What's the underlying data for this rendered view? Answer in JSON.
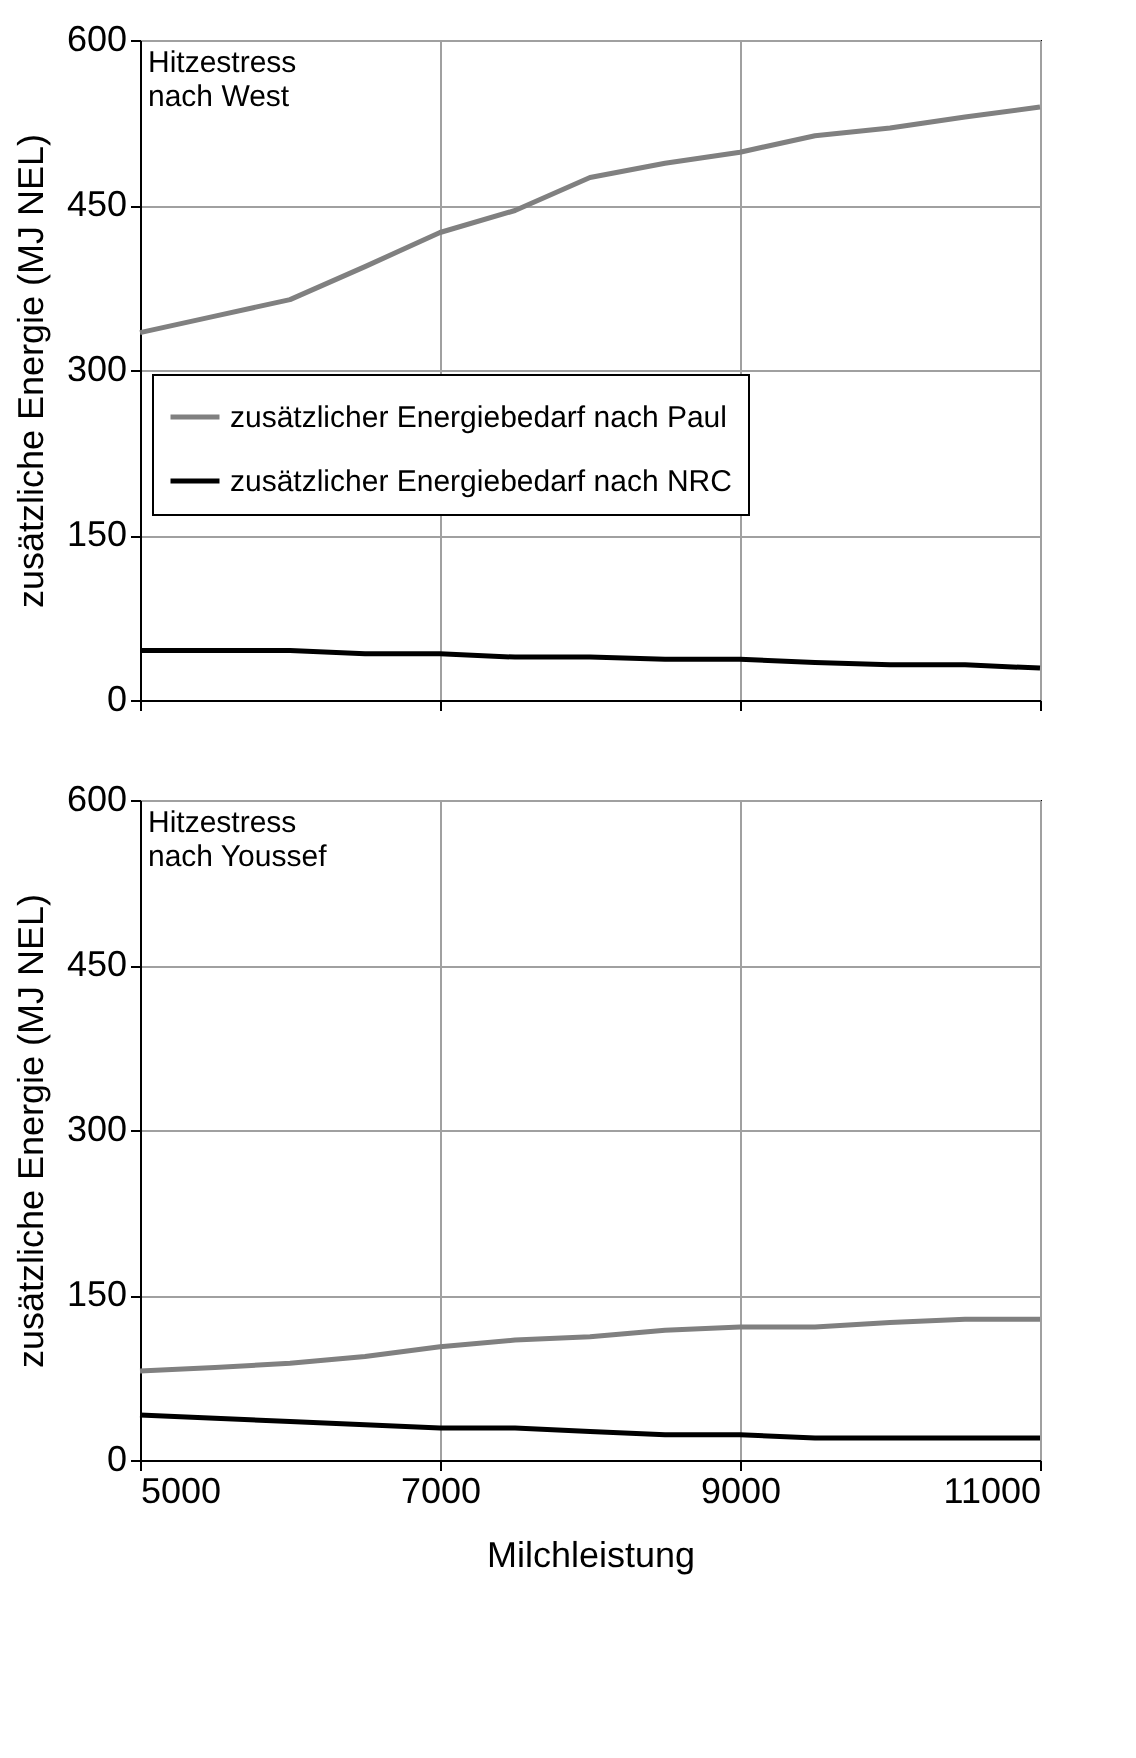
{
  "chart_data": [
    {
      "type": "line",
      "ylabel": "zusätzliche Energie (MJ NEL)",
      "annotations": [
        "Hitzestress\nnach West"
      ],
      "x": [
        5000,
        5500,
        6000,
        6500,
        7000,
        7500,
        8000,
        8500,
        9000,
        9500,
        10000,
        10500,
        11000
      ],
      "xlim": [
        5000,
        11000
      ],
      "xticks": [
        5000,
        7000,
        9000,
        11000
      ],
      "ylim": [
        0,
        600
      ],
      "yticks": [
        0,
        150,
        300,
        450,
        600
      ],
      "grid": true,
      "legend": "left",
      "tick_labels": "y",
      "marker": "none",
      "line_style": "solid",
      "series": [
        {
          "name": "zusätzlicher Energiebedarf nach Paul",
          "color": "#808080",
          "values": [
            334,
            349,
            364,
            394,
            425,
            445,
            475,
            488,
            498,
            513,
            520,
            530,
            539
          ]
        },
        {
          "name": "zusätzlicher Energiebedarf nach NRC",
          "color": "#000000",
          "values": [
            45,
            45,
            45,
            42,
            42,
            39,
            39,
            37,
            37,
            34,
            32,
            32,
            29
          ]
        }
      ]
    },
    {
      "type": "line",
      "xlabel": "Milchleistung",
      "ylabel": "zusätzliche Energie (MJ NEL)",
      "annotations": [
        "Hitzestress\nnach Youssef"
      ],
      "x": [
        5000,
        5500,
        6000,
        6500,
        7000,
        7500,
        8000,
        8500,
        9000,
        9500,
        10000,
        10500,
        11000
      ],
      "xlim": [
        5000,
        11000
      ],
      "xticks": [
        5000,
        7000,
        9000,
        11000
      ],
      "ylim": [
        0,
        600
      ],
      "yticks": [
        0,
        150,
        300,
        450,
        600
      ],
      "grid": true,
      "legend": "left",
      "marker": "none",
      "line_style": "solid",
      "series": [
        {
          "name": "zusätzlicher Energiebedarf nach Paul",
          "color": "#808080",
          "values": [
            81,
            84,
            88,
            94,
            103,
            109,
            112,
            118,
            121,
            121,
            125,
            128,
            128
          ]
        },
        {
          "name": "zusätzlicher Energiebedarf nach NRC",
          "color": "#000000",
          "values": [
            41,
            38,
            35,
            32,
            29,
            29,
            26,
            23,
            23,
            20,
            20,
            20,
            20
          ]
        }
      ]
    }
  ]
}
